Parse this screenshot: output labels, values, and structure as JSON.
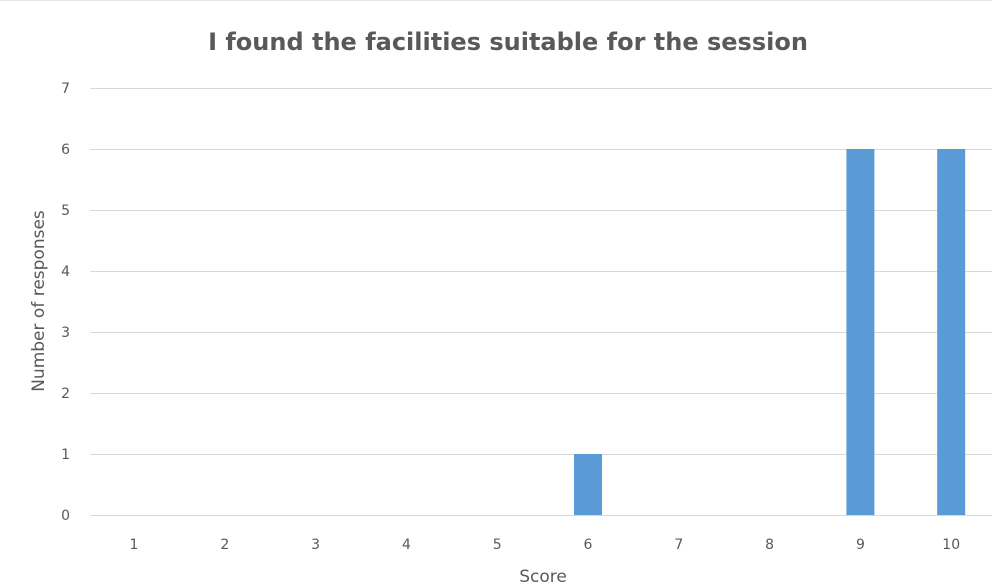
{
  "chart_data": {
    "type": "bar",
    "title": "I found the facilities suitable for the session",
    "xlabel": "Score",
    "ylabel": "Number of responses",
    "categories": [
      "1",
      "2",
      "3",
      "4",
      "5",
      "6",
      "7",
      "8",
      "9",
      "10"
    ],
    "values": [
      0,
      0,
      0,
      0,
      0,
      1,
      0,
      0,
      6,
      6
    ],
    "ylim": [
      0,
      7
    ],
    "yticks": [
      0,
      1,
      2,
      3,
      4,
      5,
      6,
      7
    ],
    "grid": true,
    "legend": "none",
    "bar_color": "#5b9bd5"
  }
}
